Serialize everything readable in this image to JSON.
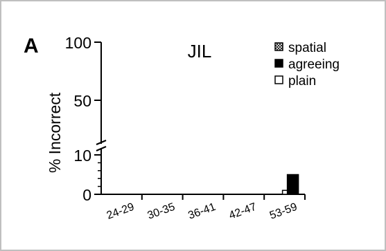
{
  "panel_label": "A",
  "chart_data": {
    "type": "bar",
    "title": "JIL",
    "xlabel": "",
    "ylabel": "% Incorrect",
    "ylim": [
      0,
      100
    ],
    "axis_break": true,
    "grid": false,
    "legend_position": "top-right",
    "y_ticks": [
      "0",
      "10",
      "50",
      "100"
    ],
    "categories": [
      "24-29",
      "30-35",
      "36-41",
      "42-47",
      "53-59"
    ],
    "series": [
      {
        "name": "spatial",
        "style": "crossed-box",
        "color": "#000000",
        "values": [
          0,
          0,
          0,
          0,
          0
        ]
      },
      {
        "name": "agreeing",
        "style": "filled",
        "color": "#000000",
        "values": [
          0,
          0,
          0,
          0,
          5
        ]
      },
      {
        "name": "plain",
        "style": "open",
        "color": "#ffffff",
        "values": [
          0,
          0,
          0,
          0,
          1
        ]
      }
    ]
  }
}
